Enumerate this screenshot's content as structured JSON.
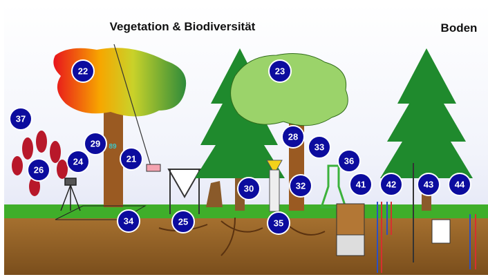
{
  "headings": [
    "Vegetation & Biodiversität",
    "Boden"
  ],
  "annotation": "89",
  "markers": [
    {
      "label": "37"
    },
    {
      "label": "22"
    },
    {
      "label": "23"
    },
    {
      "label": "29"
    },
    {
      "label": "24"
    },
    {
      "label": "21"
    },
    {
      "label": "26"
    },
    {
      "label": "28"
    },
    {
      "label": "33"
    },
    {
      "label": "36"
    },
    {
      "label": "30"
    },
    {
      "label": "32"
    },
    {
      "label": "41"
    },
    {
      "label": "42"
    },
    {
      "label": "43"
    },
    {
      "label": "44"
    },
    {
      "label": "34"
    },
    {
      "label": "25"
    },
    {
      "label": "35"
    }
  ]
}
